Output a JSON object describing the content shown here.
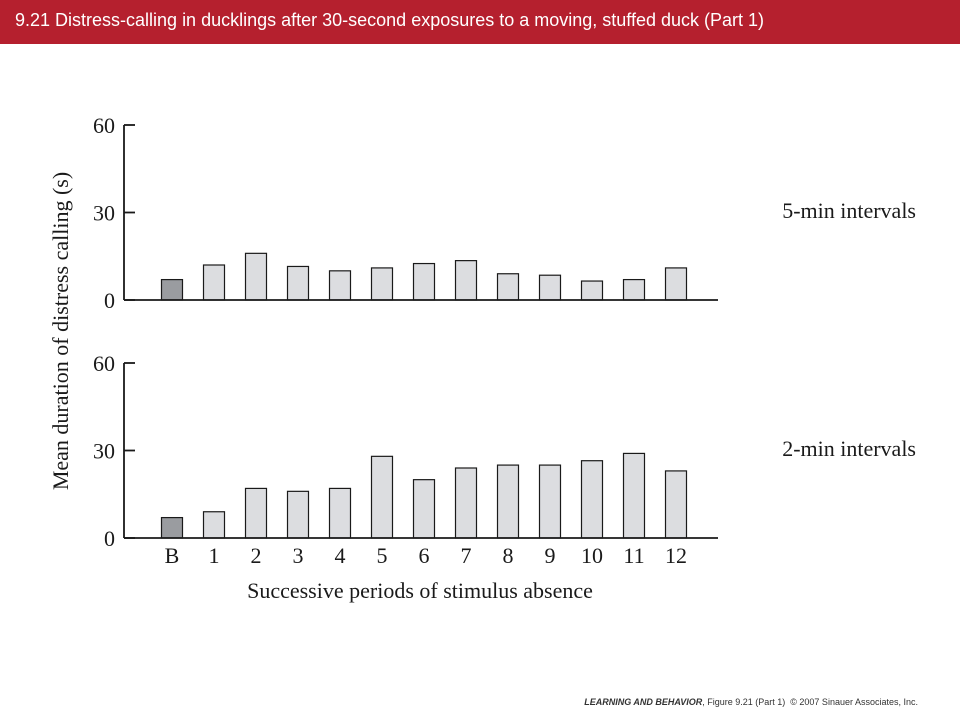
{
  "slide": {
    "title": "9.21  Distress-calling in ducklings after 30-second exposures to a moving, stuffed duck (Part 1)"
  },
  "footer": {
    "book": "LEARNING AND BEHAVIOR",
    "figure": ", Figure 9.21 (Part 1)",
    "copyright": "© 2007 Sinauer Associates, Inc."
  },
  "colors": {
    "title_bar": "#b5202e",
    "baseline_bar": "#9a9ca0",
    "period_bar": "#dcdde0",
    "outline": "#1a1a1a"
  },
  "chart_data": [
    {
      "type": "bar",
      "panel_label": "5-min intervals",
      "categories": [
        "B",
        "1",
        "2",
        "3",
        "4",
        "5",
        "6",
        "7",
        "8",
        "9",
        "10",
        "11",
        "12"
      ],
      "values": [
        7,
        12,
        16,
        11.5,
        10,
        11,
        12.5,
        13.5,
        9,
        8.5,
        6.5,
        7,
        11
      ],
      "ylim": [
        0,
        60
      ],
      "yticks": [
        "0",
        "30",
        "60"
      ],
      "baseline_category": "B"
    },
    {
      "type": "bar",
      "panel_label": "2-min intervals",
      "categories": [
        "B",
        "1",
        "2",
        "3",
        "4",
        "5",
        "6",
        "7",
        "8",
        "9",
        "10",
        "11",
        "12"
      ],
      "values": [
        7,
        9,
        17,
        16,
        17,
        28,
        20,
        24,
        25,
        25,
        26.5,
        29,
        23
      ],
      "ylim": [
        0,
        60
      ],
      "yticks": [
        "0",
        "30",
        "60"
      ],
      "baseline_category": "B"
    }
  ],
  "axes": {
    "ylabel": "Mean duration of distress calling (s)",
    "xlabel": "Successive periods of stimulus absence"
  }
}
